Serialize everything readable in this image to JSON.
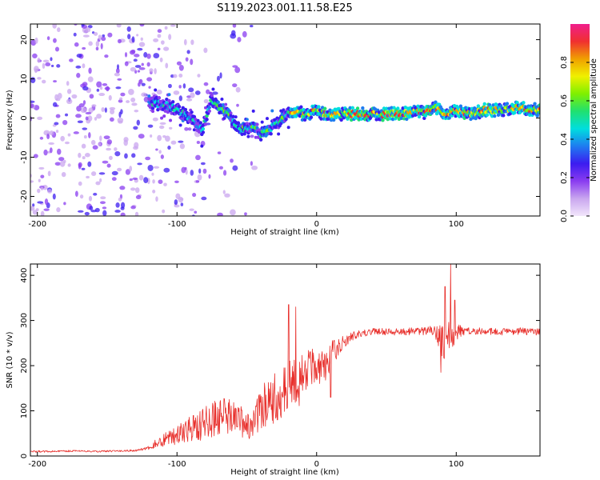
{
  "title": "S119.2023.001.11.58.E25",
  "colors": {
    "line": "#e8302c",
    "colormap": [
      "#f2e6fb",
      "#c9a6ef",
      "#8a3cf0",
      "#3c1cf0",
      "#1e7cf0",
      "#00dede",
      "#20e070",
      "#7ff000",
      "#f0f000",
      "#f0a000",
      "#f03030",
      "#f01e8c"
    ]
  },
  "chart_data": [
    {
      "type": "heatmap",
      "xlabel": "Height of straight line (km)",
      "ylabel": "Frequency (Hz)",
      "xlim": [
        -205,
        160
      ],
      "ylim": [
        -25,
        24
      ],
      "xticks": [
        -200,
        -100,
        0,
        100
      ],
      "yticks": [
        -20,
        -10,
        0,
        10,
        20
      ],
      "colorbar": {
        "label": "Normalized spectral amplitude",
        "range": [
          0,
          1
        ],
        "ticks": [
          0.0,
          0.2,
          0.4,
          0.6,
          0.8
        ]
      },
      "ridge": {
        "x": [
          -118,
          -105,
          -95,
          -88,
          -82,
          -76,
          -70,
          -64,
          -58,
          -52,
          -46,
          -40,
          -34,
          -28,
          -24,
          -20,
          -15,
          -10,
          -5,
          0,
          5,
          10,
          20,
          30,
          40,
          50,
          60,
          70,
          80,
          85,
          88,
          92,
          100,
          110,
          120,
          130,
          140,
          150,
          160
        ],
        "y": [
          4,
          3,
          1,
          -1,
          -3,
          4,
          3,
          1,
          -2,
          -3,
          -2,
          -4,
          -3,
          -1,
          0,
          1,
          2,
          1,
          1,
          2,
          1,
          1,
          1,
          1,
          1,
          1,
          1.2,
          1.4,
          1.6,
          2.5,
          2,
          1,
          2,
          1,
          2,
          2,
          2.5,
          2.5,
          2
        ]
      }
    },
    {
      "type": "line",
      "xlabel": "Height of straight line (km)",
      "ylabel": "SNR (10 * v/v)",
      "xlim": [
        -205,
        160
      ],
      "ylim": [
        0,
        425
      ],
      "xticks": [
        -200,
        -100,
        0,
        100
      ],
      "yticks": [
        0,
        100,
        200,
        300,
        400
      ],
      "x": [
        -205,
        -190,
        -175,
        -160,
        -145,
        -130,
        -120,
        -115,
        -110,
        -105,
        -100,
        -95,
        -90,
        -85,
        -80,
        -75,
        -70,
        -65,
        -60,
        -55,
        -50,
        -45,
        -40,
        -35,
        -30,
        -25,
        -20,
        -15,
        -10,
        -5,
        0,
        5,
        10,
        15,
        20,
        25,
        30,
        35,
        40,
        50,
        60,
        70,
        80,
        85,
        90,
        95,
        100,
        105,
        110,
        120,
        130,
        140,
        150,
        160
      ],
      "y": [
        10,
        10,
        11,
        10,
        11,
        12,
        18,
        28,
        35,
        40,
        45,
        55,
        60,
        65,
        75,
        80,
        85,
        90,
        90,
        80,
        60,
        80,
        100,
        120,
        135,
        145,
        150,
        160,
        175,
        190,
        195,
        200,
        220,
        240,
        255,
        265,
        270,
        272,
        275,
        275,
        275,
        276,
        276,
        276,
        250,
        270,
        275,
        276,
        276,
        276,
        275,
        276,
        276,
        275
      ],
      "noise": [
        2,
        2,
        2,
        2,
        2,
        2,
        4,
        10,
        15,
        20,
        20,
        25,
        30,
        35,
        40,
        40,
        40,
        40,
        40,
        35,
        30,
        35,
        45,
        60,
        60,
        60,
        60,
        60,
        55,
        45,
        45,
        40,
        35,
        20,
        15,
        10,
        8,
        8,
        8,
        8,
        8,
        8,
        10,
        15,
        40,
        45,
        20,
        10,
        8,
        8,
        8,
        8,
        8,
        8
      ],
      "spikes": [
        [
          -20,
          335
        ],
        [
          -15,
          330
        ],
        [
          96,
          425
        ],
        [
          92,
          375
        ],
        [
          99,
          345
        ],
        [
          89,
          185
        ],
        [
          -28,
          80
        ],
        [
          10,
          130
        ]
      ]
    }
  ]
}
